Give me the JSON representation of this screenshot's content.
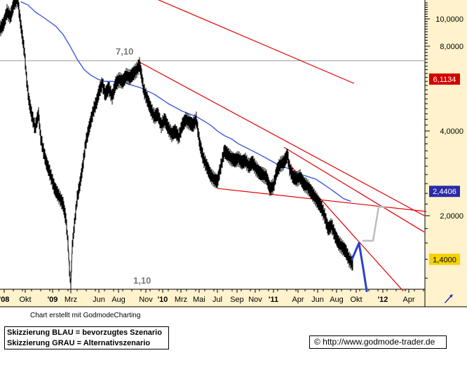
{
  "chart_data": {
    "type": "line",
    "y_scale": "log",
    "ylim": [
      1.1,
      12.0
    ],
    "x_tick_labels": [
      "'08",
      "Okt",
      "'09",
      "Mrz",
      "Jun",
      "Aug",
      "Nov",
      "'10",
      "Mrz",
      "Mai",
      "Jul",
      "Sep",
      "Nov",
      "'11",
      "Apr",
      "Jun",
      "Aug",
      "Okt",
      "'12",
      "Apr"
    ],
    "y_tick_labels": [
      "10,0000",
      "8,0000",
      "4,0000",
      "2,0000"
    ],
    "price_tags": [
      {
        "text": "6,1134",
        "color": "#d40000"
      },
      {
        "text": "2,4406",
        "color": "#2a2aaa"
      },
      {
        "text": "1,4000",
        "color": "#f5d200"
      }
    ],
    "annotations": [
      "7,10",
      "1,10"
    ],
    "price_series": [
      [
        0,
        9.2
      ],
      [
        5,
        9.6
      ],
      [
        10,
        10.6
      ],
      [
        15,
        10.2
      ],
      [
        20,
        11.4
      ],
      [
        25,
        11.8
      ],
      [
        30,
        9.4
      ],
      [
        35,
        7.6
      ],
      [
        38,
        6.1
      ],
      [
        41,
        5.2
      ],
      [
        45,
        4.6
      ],
      [
        50,
        4.1
      ],
      [
        55,
        4.6
      ],
      [
        58,
        3.8
      ],
      [
        62,
        3.4
      ],
      [
        66,
        3.1
      ],
      [
        70,
        2.9
      ],
      [
        74,
        2.7
      ],
      [
        78,
        2.5
      ],
      [
        82,
        2.4
      ],
      [
        86,
        2.3
      ],
      [
        90,
        2.2
      ],
      [
        94,
        1.95
      ],
      [
        97,
        1.6
      ],
      [
        99,
        1.3
      ],
      [
        101,
        1.13
      ],
      [
        103,
        1.55
      ],
      [
        106,
        1.85
      ],
      [
        110,
        2.3
      ],
      [
        114,
        2.6
      ],
      [
        118,
        3.0
      ],
      [
        122,
        3.6
      ],
      [
        126,
        4.0
      ],
      [
        130,
        4.4
      ],
      [
        134,
        4.8
      ],
      [
        138,
        5.1
      ],
      [
        142,
        5.6
      ],
      [
        146,
        5.9
      ],
      [
        150,
        5.4
      ],
      [
        155,
        5.7
      ],
      [
        160,
        5.3
      ],
      [
        165,
        5.9
      ],
      [
        170,
        6.1
      ],
      [
        175,
        6.0
      ],
      [
        180,
        6.3
      ],
      [
        185,
        6.2
      ],
      [
        190,
        6.4
      ],
      [
        195,
        6.6
      ],
      [
        199,
        6.9
      ],
      [
        202,
        6.3
      ],
      [
        205,
        5.6
      ],
      [
        210,
        5.2
      ],
      [
        215,
        4.8
      ],
      [
        220,
        4.5
      ],
      [
        225,
        4.6
      ],
      [
        230,
        4.2
      ],
      [
        235,
        4.4
      ],
      [
        240,
        4.1
      ],
      [
        245,
        3.9
      ],
      [
        250,
        4.0
      ],
      [
        255,
        3.8
      ],
      [
        260,
        4.2
      ],
      [
        265,
        4.4
      ],
      [
        270,
        4.3
      ],
      [
        275,
        4.2
      ],
      [
        280,
        4.4
      ],
      [
        285,
        3.6
      ],
      [
        290,
        3.2
      ],
      [
        295,
        3.0
      ],
      [
        300,
        2.8
      ],
      [
        305,
        2.7
      ],
      [
        310,
        2.65
      ],
      [
        315,
        3.0
      ],
      [
        320,
        3.4
      ],
      [
        325,
        3.3
      ],
      [
        330,
        3.2
      ],
      [
        335,
        3.15
      ],
      [
        340,
        3.2
      ],
      [
        345,
        3.1
      ],
      [
        350,
        3.15
      ],
      [
        355,
        3.0
      ],
      [
        360,
        3.1
      ],
      [
        365,
        2.95
      ],
      [
        370,
        2.85
      ],
      [
        375,
        2.8
      ],
      [
        380,
        2.75
      ],
      [
        385,
        2.5
      ],
      [
        390,
        2.55
      ],
      [
        395,
        2.9
      ],
      [
        400,
        3.05
      ],
      [
        405,
        3.1
      ],
      [
        410,
        3.3
      ],
      [
        413,
        2.95
      ],
      [
        418,
        2.75
      ],
      [
        423,
        2.7
      ],
      [
        428,
        2.75
      ],
      [
        433,
        2.6
      ],
      [
        438,
        2.55
      ],
      [
        443,
        2.45
      ],
      [
        448,
        2.35
      ],
      [
        453,
        2.25
      ],
      [
        458,
        2.15
      ],
      [
        463,
        2.0
      ],
      [
        468,
        1.8
      ],
      [
        473,
        1.85
      ],
      [
        478,
        1.7
      ],
      [
        483,
        1.6
      ],
      [
        488,
        1.55
      ],
      [
        493,
        1.5
      ],
      [
        498,
        1.4
      ],
      [
        503,
        1.35
      ]
    ],
    "moving_average": [
      [
        30,
        11.5
      ],
      [
        40,
        11.2
      ],
      [
        50,
        10.6
      ],
      [
        60,
        10.2
      ],
      [
        70,
        9.8
      ],
      [
        80,
        9.4
      ],
      [
        90,
        8.8
      ],
      [
        100,
        8.0
      ],
      [
        110,
        7.2
      ],
      [
        120,
        6.6
      ],
      [
        130,
        6.3
      ],
      [
        140,
        6.1
      ],
      [
        150,
        6.0
      ],
      [
        160,
        6.0
      ],
      [
        170,
        5.95
      ],
      [
        180,
        5.9
      ],
      [
        190,
        5.8
      ],
      [
        200,
        5.7
      ],
      [
        210,
        5.55
      ],
      [
        220,
        5.4
      ],
      [
        230,
        5.2
      ],
      [
        240,
        5.0
      ],
      [
        250,
        4.85
      ],
      [
        260,
        4.7
      ],
      [
        270,
        4.6
      ],
      [
        280,
        4.5
      ],
      [
        290,
        4.35
      ],
      [
        300,
        4.2
      ],
      [
        310,
        4.0
      ],
      [
        320,
        3.85
      ],
      [
        330,
        3.75
      ],
      [
        340,
        3.6
      ],
      [
        350,
        3.5
      ],
      [
        360,
        3.4
      ],
      [
        370,
        3.3
      ],
      [
        380,
        3.2
      ],
      [
        390,
        3.1
      ],
      [
        400,
        3.0
      ],
      [
        410,
        2.95
      ],
      [
        420,
        2.85
      ],
      [
        430,
        2.8
      ],
      [
        440,
        2.75
      ],
      [
        450,
        2.7
      ],
      [
        460,
        2.6
      ],
      [
        470,
        2.5
      ],
      [
        480,
        2.4
      ],
      [
        490,
        2.3
      ],
      [
        500,
        2.25
      ]
    ],
    "lines": {
      "horizontal_level": 7.1,
      "red_trend_lines": [
        [
          [
            205,
            12.3
          ],
          [
            505,
            5.9
          ]
        ],
        [
          [
            200,
            7.0
          ],
          [
            605,
            2.0
          ]
        ],
        [
          [
            405,
            3.5
          ],
          [
            605,
            1.75
          ]
        ],
        [
          [
            310,
            2.5
          ],
          [
            608,
            2.07
          ]
        ],
        [
          [
            405,
            3.2
          ],
          [
            575,
            1.08
          ]
        ]
      ],
      "blue_scenario": [
        [
          502,
          1.4
        ],
        [
          512,
          1.6
        ],
        [
          518,
          1.3
        ],
        [
          523,
          1.08
        ]
      ],
      "grey_scenario": [
        [
          518,
          1.63
        ],
        [
          532,
          1.63
        ],
        [
          540,
          2.15
        ],
        [
          548,
          2.15
        ]
      ]
    }
  },
  "footer": {
    "credit": "Chart erstellt mit GodmodeCharting",
    "legend_line1": "Skizzierung BLAU = bevorzugtes Szenario",
    "legend_line2": "Skizzierung GRAU = Alternativszenario",
    "url": "© http://www.godmode-trader.de"
  },
  "icons": {
    "pointer": "cursor-icon"
  }
}
